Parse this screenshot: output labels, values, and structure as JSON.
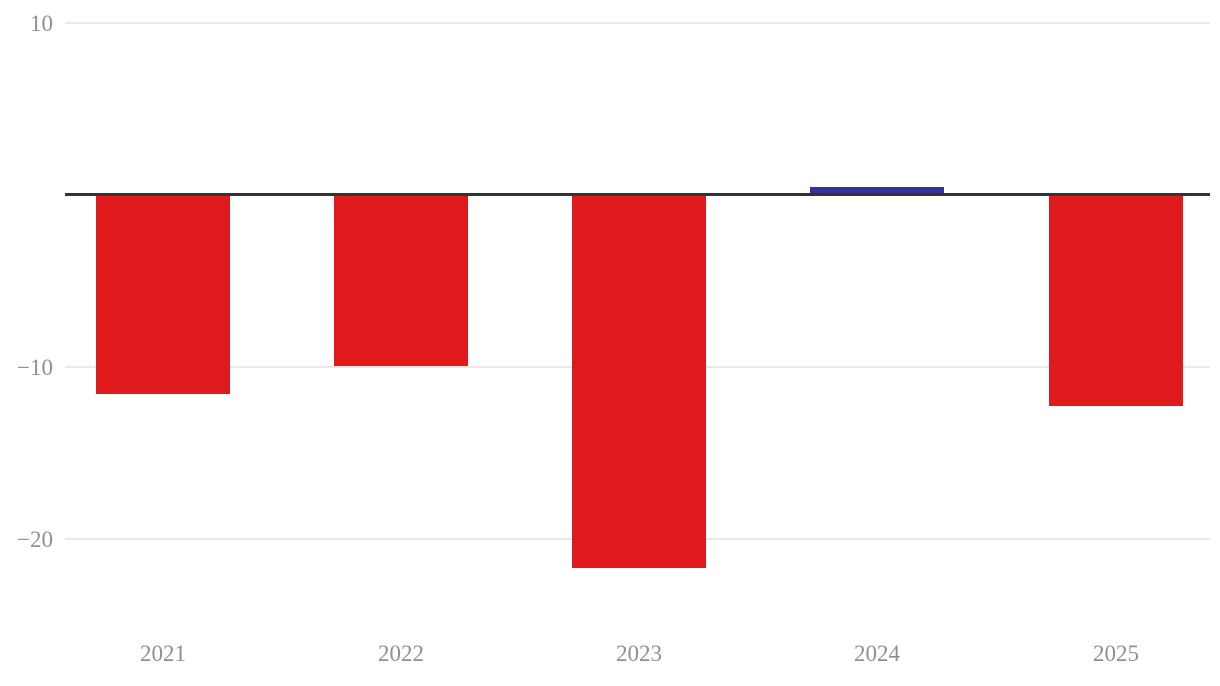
{
  "chart_data": {
    "type": "bar",
    "categories": [
      "2021",
      "2022",
      "2023",
      "2024",
      "2025"
    ],
    "values": [
      -11.5,
      -9.9,
      -21.6,
      0.5,
      -12.2
    ],
    "title": "",
    "xlabel": "",
    "ylabel": "",
    "ylim": [
      -25,
      10
    ],
    "yticks": [
      {
        "value": 10,
        "label": "10"
      },
      {
        "value": -10,
        "label": "−10"
      },
      {
        "value": -20,
        "label": "−20"
      }
    ],
    "grid": true,
    "legend": "none",
    "colors": {
      "negative_bar": "#e0191c",
      "positive_bar": "#32339b",
      "gridline": "#e9e9e9",
      "zero_line": "#333333",
      "tick_label": "#909090"
    }
  }
}
